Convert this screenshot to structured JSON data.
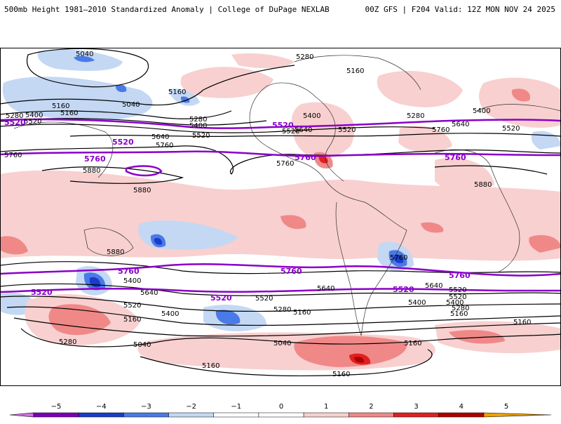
{
  "header": {
    "title_left": "500mb Height 1981–2010 Standardized Anomaly | College of DuPage NEXLAB",
    "title_right": "00Z GFS | F204 Valid: 12Z MON NOV 24 2025"
  },
  "colors": {
    "neg5": "#d070e0",
    "neg4": "#7a00b8",
    "neg3": "#1a3cc8",
    "neg2": "#4a7ae8",
    "neg1": "#c4d8f4",
    "zero": "#ffffff",
    "pos1": "#f8d0d0",
    "pos2": "#f08888",
    "pos3": "#e02020",
    "pos4": "#b00000",
    "pos5": "#f0a000",
    "contour_black": "#000000",
    "contour_purple": "#8a00c8"
  },
  "colorbar": {
    "ticks": [
      "−5",
      "−4",
      "−3",
      "−2",
      "−1",
      "0",
      "1",
      "2",
      "3",
      "4",
      "5"
    ]
  },
  "contour_labels": {
    "black": [
      "5040",
      "5280",
      "5160",
      "5160",
      "5280",
      "5400",
      "5520",
      "5160",
      "5040",
      "5160",
      "5280",
      "5400",
      "5520",
      "5400",
      "5640",
      "5520",
      "5280",
      "5400",
      "5640",
      "5760",
      "5520",
      "5640",
      "5760",
      "5520",
      "5760",
      "5880",
      "5880",
      "5880",
      "5880",
      "5760",
      "5640",
      "5520",
      "5400",
      "5160",
      "5280",
      "5040",
      "5400",
      "5640",
      "5520",
      "5520",
      "5400",
      "5280",
      "5160",
      "5760",
      "5640",
      "5520",
      "5400",
      "5280",
      "5160",
      "5040",
      "5160",
      "5160",
      "5160",
      "5160",
      "5640",
      "5520",
      "5280",
      "5160"
    ],
    "purple": [
      "5520",
      "5520",
      "5520",
      "5760",
      "5760",
      "5760",
      "5760",
      "5760",
      "5760",
      "5520",
      "5520",
      "5520"
    ]
  }
}
